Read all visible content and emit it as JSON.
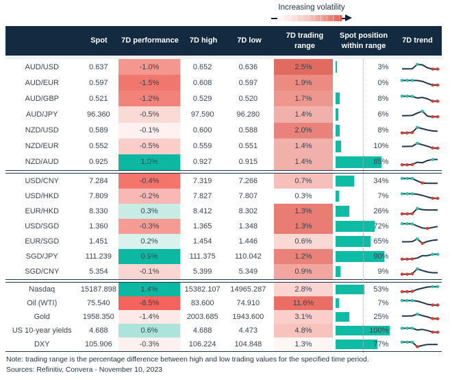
{
  "legend": {
    "label": "Increasing volatility"
  },
  "colors": {
    "header_bg": "#132B40",
    "teal": "#0DB8A2",
    "bar_teal": "#0EBCA6",
    "spark_line": "#1F3349",
    "dot_high": "#2CBFAB",
    "dot_low": "#E23B2E",
    "separator": "#20364C",
    "text": "#39434F"
  },
  "chart_data": {
    "type": "table",
    "columns": [
      "Spot",
      "7D performance",
      "7D high",
      "7D low",
      "7D trading range",
      "Spot position within range",
      "7D trend"
    ],
    "position_axis": {
      "bar_full_pct": 100,
      "dotted_reference_pct": 50
    },
    "groups": [
      {
        "rows": [
          {
            "label": "AUD/USD",
            "spot": "0.637",
            "perf": "-1.0%",
            "perf_bg": "#F5968F",
            "high": "0.652",
            "low": "0.636",
            "range": "2.5%",
            "range_bg": "#E16B61",
            "pos_pct": 3,
            "pos": "3%",
            "spark": {
              "points": [
                0.28,
                0.28,
                0.3,
                0.88,
                0.82,
                0.42,
                0.25,
                0.25
              ],
              "teal": [
                3
              ],
              "red": [
                6,
                7
              ]
            }
          },
          {
            "label": "AUD/EUR",
            "spot": "0.597",
            "perf": "-1.5%",
            "perf_bg": "#F0776E",
            "high": "0.608",
            "low": "0.597",
            "range": "1.9%",
            "range_bg": "#EB8B82",
            "pos_pct": 0,
            "pos": "0%",
            "spark": {
              "points": [
                0.85,
                0.85,
                0.85,
                0.83,
                0.72,
                0.45,
                0.22,
                0.22
              ],
              "teal": [
                0,
                1,
                2
              ],
              "red": [
                6,
                7
              ]
            }
          },
          {
            "label": "AUD/GBP",
            "spot": "0.521",
            "perf": "-1.2%",
            "perf_bg": "#F1837B",
            "high": "0.529",
            "low": "0.520",
            "range": "1.7%",
            "range_bg": "#EE978F",
            "pos_pct": 8,
            "pos": "8%",
            "spark": {
              "points": [
                0.85,
                0.85,
                0.82,
                0.6,
                0.68,
                0.5,
                0.18,
                0.18
              ],
              "teal": [
                0,
                1,
                2
              ],
              "red": [
                6,
                7
              ]
            }
          },
          {
            "label": "AUD/JPY",
            "spot": "96.360",
            "perf": "-0.5%",
            "perf_bg": "#FBD9D5",
            "high": "97.590",
            "low": "96.280",
            "range": "1.4%",
            "range_bg": "#F2B0AA",
            "pos_pct": 6,
            "pos": "6%",
            "spark": {
              "points": [
                0.35,
                0.35,
                0.38,
                0.7,
                0.95,
                0.3,
                0.2,
                0.2
              ],
              "teal": [
                4
              ],
              "red": [
                6,
                7
              ]
            }
          },
          {
            "label": "NZD/USD",
            "spot": "0.589",
            "perf": "-0.1%",
            "perf_bg": "#FEF1F0",
            "high": "0.600",
            "low": "0.588",
            "range": "2.0%",
            "range_bg": "#E8827A",
            "pos_pct": 8,
            "pos": "8%",
            "spark": {
              "points": [
                0.15,
                0.15,
                0.2,
                0.9,
                0.72,
                0.55,
                0.42,
                0.38
              ],
              "teal": [
                3
              ],
              "red": [
                0,
                1,
                2
              ]
            }
          },
          {
            "label": "NZD/EUR",
            "spot": "0.552",
            "perf": "-0.5%",
            "perf_bg": "#F9CEC9",
            "high": "0.559",
            "low": "0.551",
            "range": "1.4%",
            "range_bg": "#F2B0AA",
            "pos_pct": 10,
            "pos": "10%",
            "spark": {
              "points": [
                0.45,
                0.45,
                0.48,
                0.88,
                0.68,
                0.48,
                0.25,
                0.22
              ],
              "teal": [
                3
              ],
              "red": [
                6,
                7
              ]
            }
          },
          {
            "label": "NZD/AUD",
            "spot": "0.925",
            "perf": "1.0%",
            "perf_bg": "#0DB8A2",
            "high": "0.927",
            "low": "0.915",
            "range": "1.4%",
            "range_bg": "#F2B0AA",
            "pos_pct": 85,
            "pos": "85%",
            "spark": {
              "points": [
                0.1,
                0.1,
                0.14,
                0.45,
                0.38,
                0.68,
                0.82,
                0.82
              ],
              "teal": [
                6
              ],
              "red": [
                0,
                1,
                2
              ]
            }
          }
        ]
      },
      {
        "rows": [
          {
            "label": "USD/CNY",
            "spot": "7.284",
            "perf": "-0.4%",
            "perf_bg": "#F4756C",
            "high": "7.319",
            "low": "7.266",
            "range": "0.7%",
            "range_bg": "#F6BFB9",
            "pos_pct": 34,
            "pos": "34%",
            "spark": {
              "points": [
                0.85,
                0.85,
                0.85,
                0.52,
                0.25,
                0.2,
                0.2,
                0.2
              ],
              "teal": [
                0,
                1,
                2
              ],
              "red": [
                4
              ]
            }
          },
          {
            "label": "USD/HKD",
            "spot": "7.809",
            "perf": "-0.2%",
            "perf_bg": "#F9B8B2",
            "high": "7.827",
            "low": "7.807",
            "range": "0.3%",
            "range_bg": "#FFFFFF",
            "pos_pct": 7,
            "pos": "7%",
            "spark": {
              "points": [
                0.82,
                0.82,
                0.82,
                0.76,
                0.6,
                0.4,
                0.22,
                0.2
              ],
              "teal": [
                0,
                1,
                2
              ],
              "red": [
                6,
                7
              ]
            }
          },
          {
            "label": "EUR/HKD",
            "spot": "8.330",
            "perf": "0.3%",
            "perf_bg": "#C7ECE6",
            "high": "8.412",
            "low": "8.302",
            "range": "1.3%",
            "range_bg": "#E97D74",
            "pos_pct": 26,
            "pos": "26%",
            "spark": {
              "points": [
                0.15,
                0.15,
                0.18,
                0.88,
                0.72,
                0.68,
                0.68,
                0.68
              ],
              "teal": [
                3
              ],
              "red": [
                0,
                1,
                2
              ]
            }
          },
          {
            "label": "USD/SGD",
            "spot": "1.360",
            "perf": "-0.3%",
            "perf_bg": "#F79C94",
            "high": "1.365",
            "low": "1.348",
            "range": "1.3%",
            "range_bg": "#E97D74",
            "pos_pct": 72,
            "pos": "72%",
            "spark": {
              "points": [
                0.85,
                0.85,
                0.82,
                0.55,
                0.28,
                0.22,
                0.35,
                0.48
              ],
              "teal": [
                0,
                1,
                2
              ],
              "red": [
                5
              ]
            }
          },
          {
            "label": "EUR/SGD",
            "spot": "1.451",
            "perf": "0.2%",
            "perf_bg": "#D9F2EE",
            "high": "1.454",
            "low": "1.446",
            "range": "0.6%",
            "range_bg": "#FAD8D4",
            "pos_pct": 65,
            "pos": "65%",
            "spark": {
              "points": [
                0.45,
                0.45,
                0.48,
                0.85,
                0.25,
                0.5,
                0.65,
                0.72
              ],
              "teal": [
                3
              ],
              "red": [
                4
              ]
            }
          },
          {
            "label": "SGD/JPY",
            "spot": "111.239",
            "perf": "0.9%",
            "perf_bg": "#0DB8A2",
            "high": "111.375",
            "low": "110.042",
            "range": "1.2%",
            "range_bg": "#EA827A",
            "pos_pct": 90,
            "pos": "90%",
            "spark": {
              "points": [
                0.15,
                0.15,
                0.18,
                0.3,
                0.62,
                0.62,
                0.8,
                0.8
              ],
              "teal": [
                6,
                7
              ],
              "red": [
                0,
                1,
                2
              ]
            }
          },
          {
            "label": "SGD/CNY",
            "spot": "5.354",
            "perf": "-0.1%",
            "perf_bg": "#FBD5D1",
            "high": "5.399",
            "low": "5.349",
            "range": "0.9%",
            "range_bg": "#F3A69F",
            "pos_pct": 9,
            "pos": "9%",
            "spark": {
              "points": [
                0.15,
                0.15,
                0.2,
                0.88,
                0.65,
                0.45,
                0.35,
                0.35
              ],
              "teal": [
                3
              ],
              "red": [
                0,
                1,
                2
              ]
            }
          }
        ]
      },
      {
        "rows": [
          {
            "label": "Nasdaq",
            "spot": "15187.898",
            "perf": "1.4%",
            "perf_bg": "#0DB8A2",
            "high": "15382.107",
            "low": "14965.287",
            "range": "2.8%",
            "range_bg": "#FBD5D1",
            "pos_pct": 53,
            "pos": "53%",
            "spark": {
              "points": [
                0.2,
                0.2,
                0.24,
                0.5,
                0.68,
                0.82,
                0.88,
                0.88
              ],
              "teal": [
                6,
                7
              ],
              "red": [
                0,
                1,
                2
              ]
            }
          },
          {
            "label": "Oil (WTI)",
            "spot": "75.540",
            "perf": "-8.5%",
            "perf_bg": "#F4645D",
            "high": "83.600",
            "low": "74.910",
            "range": "11.6%",
            "range_bg": "#EB6E64",
            "pos_pct": 7,
            "pos": "7%",
            "spark": {
              "points": [
                0.85,
                0.85,
                0.85,
                0.78,
                0.58,
                0.35,
                0.25,
                0.25
              ],
              "teal": [
                0,
                1,
                2
              ],
              "red": [
                6,
                7
              ]
            }
          },
          {
            "label": "Gold",
            "spot": "1958.350",
            "perf": "-1.4%",
            "perf_bg": "#FDE9E7",
            "high": "2003.685",
            "low": "1943.600",
            "range": "3.1%",
            "range_bg": "#FACFCB",
            "pos_pct": 25,
            "pos": "25%",
            "spark": {
              "points": [
                0.62,
                0.62,
                0.64,
                0.88,
                0.68,
                0.5,
                0.28,
                0.25
              ],
              "teal": [
                3
              ],
              "red": [
                6,
                7
              ]
            }
          },
          {
            "label": "US 10-year yields",
            "spot": "4.688",
            "perf": "0.6%",
            "perf_bg": "#ACE4DB",
            "high": "4.688",
            "low": "4.473",
            "range": "4.8%",
            "range_bg": "#F8C3BD",
            "pos_pct": 100,
            "pos": "100%",
            "spark": {
              "points": [
                0.82,
                0.82,
                0.82,
                0.58,
                0.66,
                0.52,
                0.3,
                0.28
              ],
              "teal": [
                0,
                1,
                2
              ],
              "red": [
                6,
                7
              ]
            }
          },
          {
            "label": "DXY",
            "spot": "105.906",
            "perf": "-0.3%",
            "perf_bg": "#FDF1F0",
            "high": "106.224",
            "low": "104.848",
            "range": "1.3%",
            "range_bg": "#FEF6F5",
            "pos_pct": 77,
            "pos": "77%",
            "spark": {
              "points": [
                0.8,
                0.8,
                0.8,
                0.18,
                0.35,
                0.48,
                0.48,
                0.48
              ],
              "teal": [
                0,
                1,
                2
              ],
              "red": [
                3
              ]
            }
          }
        ]
      }
    ]
  },
  "notes": {
    "note": "Note: trading range is the percentage difference between high and low trading values for the specified time period.",
    "sources": "Sources: Refinitiv, Convera - November 10, 2023"
  }
}
